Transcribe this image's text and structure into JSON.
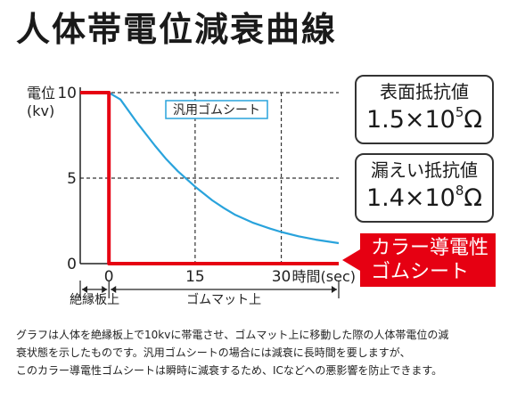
{
  "title": "人体帯電位減衰曲線",
  "resistance_boxes": [
    {
      "label": "表面抵抗値",
      "mantissa": "1.5×10",
      "exponent": "5",
      "unit": "Ω"
    },
    {
      "label": "漏えい抵抗値",
      "mantissa": "1.4×10",
      "exponent": "8",
      "unit": "Ω"
    }
  ],
  "callout": {
    "line1": "カラー導電性",
    "line2": "ゴムシート"
  },
  "description": [
    "グラフは人体を絶縁板上で10kvに帯電させ、ゴムマット上に移動した際の人体帯電位の減",
    "衰状態を示したものです。汎用ゴムシートの場合には減衰に長時間を要しますが、",
    "このカラー導電性ゴムシートは瞬時に減衰するため、ICなどへの悪影響を防止できます。"
  ],
  "colors": {
    "red": "#e60012",
    "blue": "#29a3dc",
    "axis": "#222222"
  },
  "chart_data": {
    "type": "line",
    "ylabel_line1": "電位",
    "ylabel_line2": "(kv)",
    "xlabel": "時間(sec)",
    "ylim": [
      0,
      10
    ],
    "xlim": [
      -5,
      40
    ],
    "y_ticks": [
      "10",
      "5",
      "0"
    ],
    "y_tick_values": [
      10,
      5,
      0
    ],
    "x_ticks": [
      "0",
      "15",
      "30"
    ],
    "x_tick_values": [
      0,
      15,
      30
    ],
    "grid": "dashed",
    "series": [
      {
        "name": "汎用ゴムシート",
        "color": "#29a3dc",
        "x": [
          0,
          2,
          5,
          8,
          10,
          12,
          15,
          18,
          20,
          22,
          25,
          28,
          30,
          33,
          36,
          40
        ],
        "y": [
          10,
          9.6,
          8.2,
          6.9,
          6.1,
          5.4,
          4.5,
          3.7,
          3.25,
          2.85,
          2.4,
          2.05,
          1.85,
          1.6,
          1.4,
          1.2
        ]
      },
      {
        "name": "カラー導電性ゴムシート",
        "color": "#e60012",
        "x": [
          -5,
          0,
          0,
          40
        ],
        "y": [
          10,
          10,
          0,
          0
        ]
      }
    ],
    "x_regions": [
      {
        "label": "絶縁板上",
        "from": -5,
        "to": 0
      },
      {
        "label": "ゴムマット上",
        "from": 0,
        "to": 40
      }
    ]
  }
}
